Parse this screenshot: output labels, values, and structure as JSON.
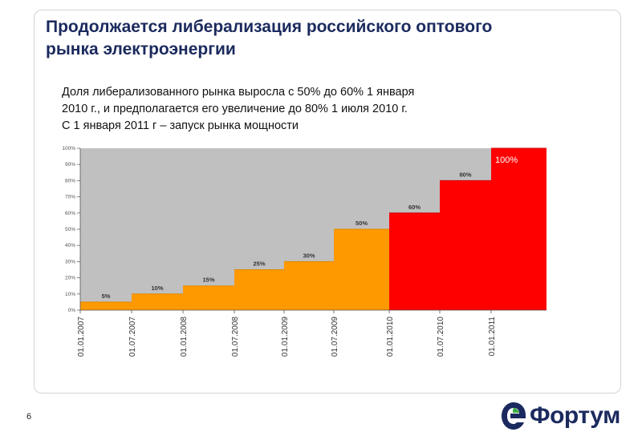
{
  "slide": {
    "title_lines": [
      "Продолжается либерализация российского оптового",
      "рынка электроэнергии"
    ],
    "subtitle_lines": [
      "Доля либерализованного рынка выросла с 50% до 60% 1 января",
      "2010 г., и предполагается его увеличение до 80% 1 июля 2010 г.",
      "С 1 января 2011 г – запуск рынка мощности"
    ],
    "page_number": "6",
    "logo_text": "Фортум"
  },
  "chart_data": {
    "type": "area",
    "x": [
      "01.01.2007",
      "01.07.2007",
      "01.01.2008",
      "01.07.2008",
      "01.01.2009",
      "01.07.2009",
      "01.01.2010",
      "01.07.2010",
      "01.01.2011"
    ],
    "step_labels": [
      "5%",
      "10%",
      "15%",
      "25%",
      "30%",
      "50%",
      "60%",
      "80%",
      "100%"
    ],
    "values": [
      5,
      10,
      15,
      25,
      30,
      50,
      60,
      80,
      100
    ],
    "ylim": [
      0,
      100
    ],
    "yticks": [
      0,
      10,
      20,
      30,
      40,
      50,
      60,
      70,
      80,
      90,
      100
    ],
    "ytick_labels": [
      "0%",
      "10%",
      "20%",
      "30%",
      "40%",
      "50%",
      "60%",
      "70%",
      "80%",
      "90%",
      "100%"
    ],
    "colors": {
      "background": "#c0c0c0",
      "past": "#ff9900",
      "future": "#ff0000",
      "axis_text": "#555555",
      "label_text": "#333333"
    },
    "future_from_index": 6
  }
}
